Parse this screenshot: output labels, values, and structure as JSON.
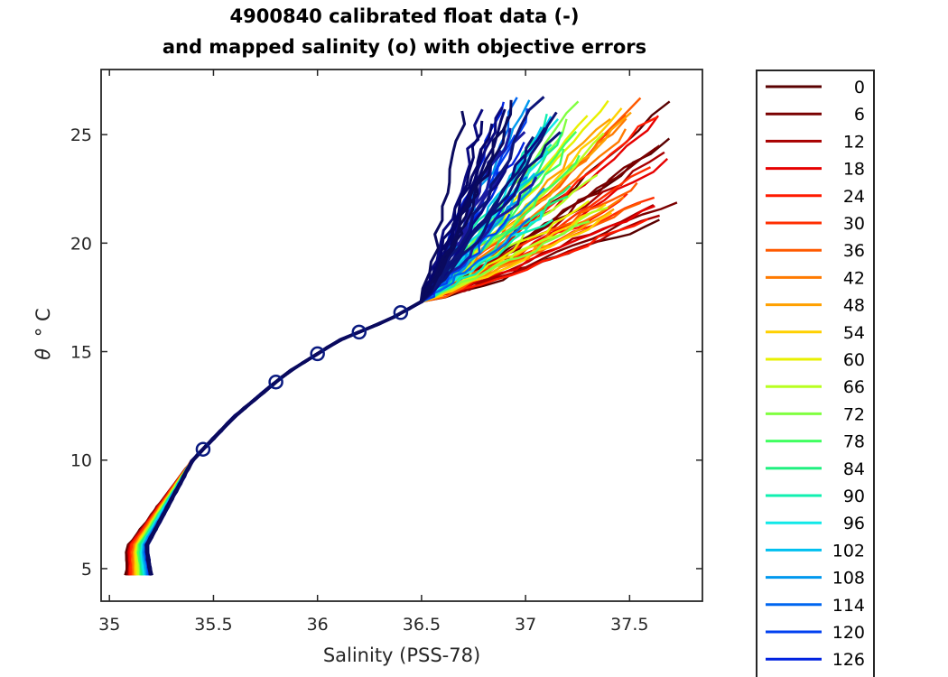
{
  "chart_data": {
    "type": "line",
    "title_line1": "4900840 calibrated float data (-)",
    "title_line2": "and mapped salinity (o) with objective errors",
    "xlabel": "Salinity (PSS-78)",
    "ylabel_symbol": "θ",
    "ylabel_unit": "° C",
    "xlim": [
      34.96,
      37.85
    ],
    "ylim": [
      3.5,
      28
    ],
    "x_ticks": [
      35,
      35.5,
      36,
      36.5,
      37,
      37.5
    ],
    "x_tick_labels": [
      "35",
      "35.5",
      "36",
      "36.5",
      "37",
      "37.5"
    ],
    "y_ticks": [
      5,
      10,
      15,
      20,
      25
    ],
    "y_tick_labels": [
      "5",
      "10",
      "15",
      "20",
      "25"
    ],
    "grid": false,
    "legend_position": "right",
    "legend": [
      {
        "label": "0",
        "color": "#5a0000"
      },
      {
        "label": "6",
        "color": "#7a0000"
      },
      {
        "label": "12",
        "color": "#a80000"
      },
      {
        "label": "18",
        "color": "#e60000"
      },
      {
        "label": "24",
        "color": "#ff1a00"
      },
      {
        "label": "30",
        "color": "#ff2e00"
      },
      {
        "label": "36",
        "color": "#ff5a00"
      },
      {
        "label": "42",
        "color": "#ff7a00"
      },
      {
        "label": "48",
        "color": "#ffa000"
      },
      {
        "label": "54",
        "color": "#ffd000"
      },
      {
        "label": "60",
        "color": "#e8f000"
      },
      {
        "label": "66",
        "color": "#b8ff20"
      },
      {
        "label": "72",
        "color": "#80ff40"
      },
      {
        "label": "78",
        "color": "#40ff60"
      },
      {
        "label": "84",
        "color": "#20f080"
      },
      {
        "label": "90",
        "color": "#10f0b0"
      },
      {
        "label": "96",
        "color": "#10e8e8"
      },
      {
        "label": "102",
        "color": "#00c0f0"
      },
      {
        "label": "108",
        "color": "#0098ee"
      },
      {
        "label": "114",
        "color": "#0066f0"
      },
      {
        "label": "120",
        "color": "#0040f0"
      },
      {
        "label": "126",
        "color": "#0022e0"
      }
    ],
    "series_summary": {
      "deep_water_point": [
        35.1,
        4.7
      ],
      "curve_knots": [
        [
          35.1,
          4.7
        ],
        [
          35.1,
          6.0
        ],
        [
          35.25,
          8.0
        ],
        [
          35.4,
          10.0
        ],
        [
          35.6,
          12.0
        ],
        [
          35.85,
          14.0
        ],
        [
          36.1,
          15.5
        ],
        [
          36.35,
          16.5
        ],
        [
          36.5,
          17.3
        ]
      ],
      "warm_spread_min_salinity": 36.65,
      "warm_spread_max_salinity": 37.75,
      "warm_max_theta": 27,
      "marker_salinity_points": [
        35.45,
        35.8,
        36.0,
        36.2,
        36.4
      ]
    }
  }
}
